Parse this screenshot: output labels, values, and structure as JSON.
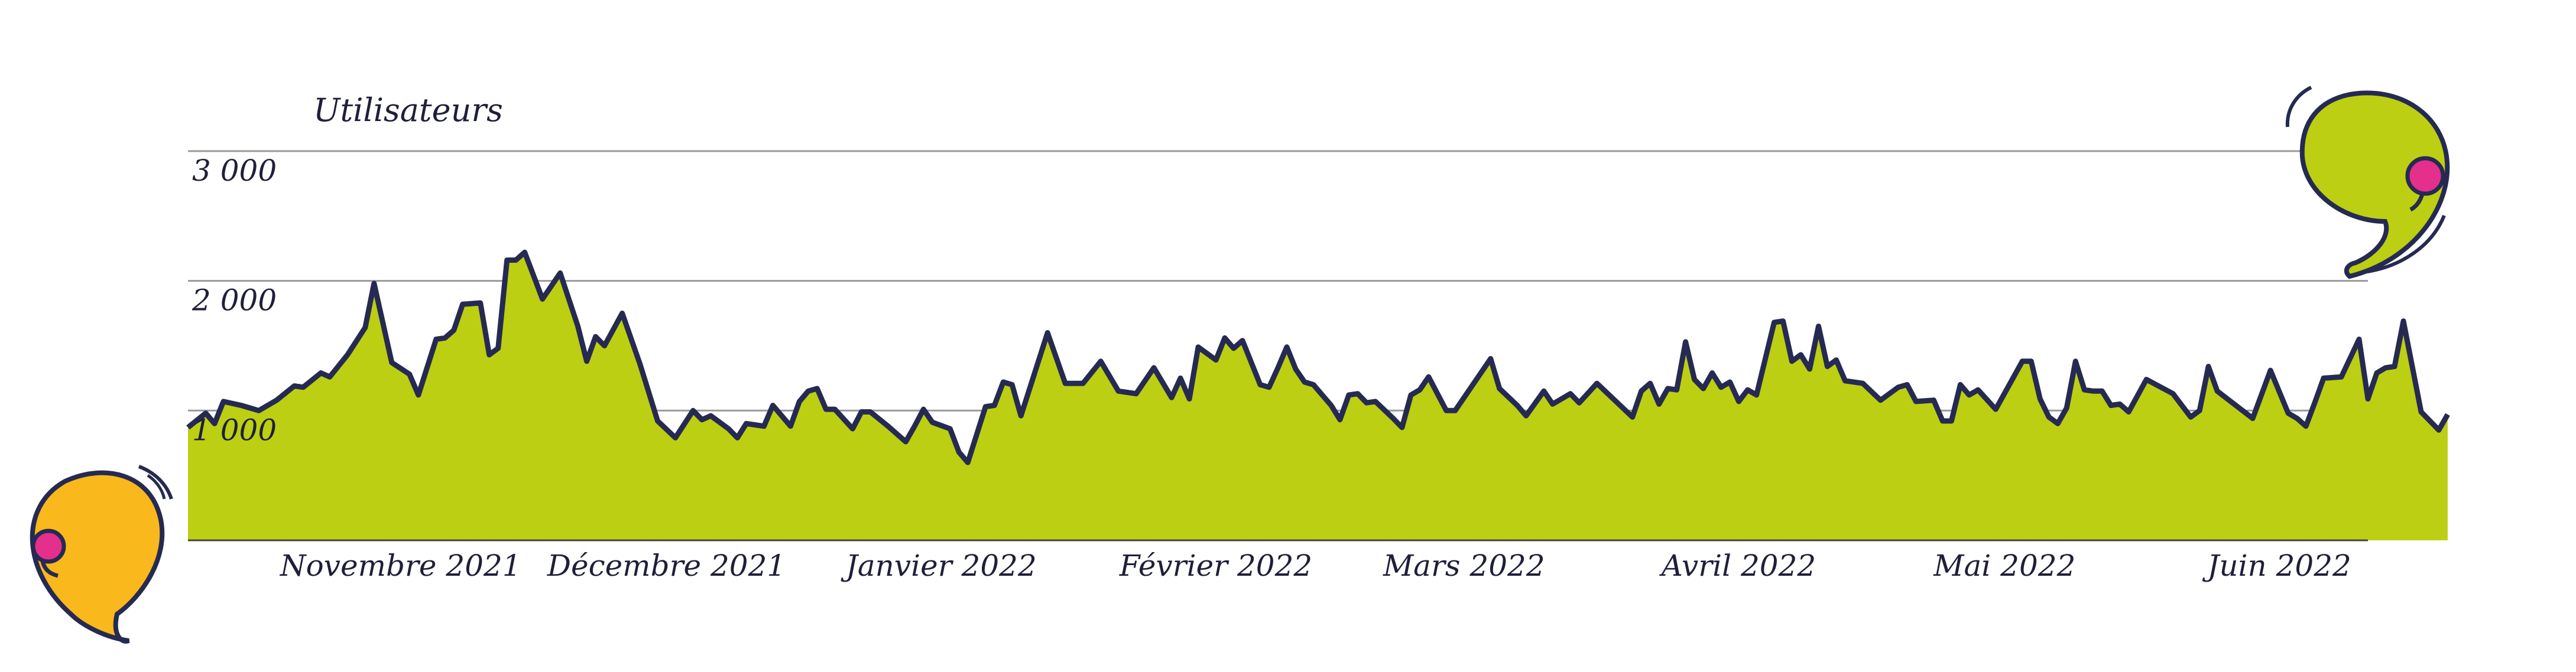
{
  "chart_data": {
    "type": "area",
    "ylabel": "Utilisateurs",
    "ylim": [
      0,
      3300
    ],
    "yticks": [
      1000,
      2000,
      3000
    ],
    "ytick_labels": [
      "1 000",
      "2 000",
      "3 000"
    ],
    "xlim": [
      "2021-10-08",
      "2022-06-11"
    ],
    "xticks": [
      "2021-11-01",
      "2021-12-01",
      "2022-01-01",
      "2022-02-01",
      "2022-03-01",
      "2022-04-01",
      "2022-05-01",
      "2022-06-01"
    ],
    "xtick_labels": [
      "Novembre 2021",
      "Décembre 2021",
      "Janvier 2022",
      "Février 2022",
      "Mars 2022",
      "Avril 2022",
      "Mai 2022",
      "Juin 2022"
    ],
    "grid": true,
    "colors": {
      "fill": "#bccf12",
      "line": "#262a52",
      "grid": "#9a9a9a",
      "comma_yellow": "#f9b81c",
      "comma_green": "#bccf12",
      "comma_pink": "#e42f8d"
    },
    "series": [
      {
        "points": [
          [
            "2021-10-08",
            870
          ],
          [
            "2021-10-10",
            980
          ],
          [
            "2021-10-11",
            900
          ],
          [
            "2021-10-12",
            1070
          ],
          [
            "2021-10-14",
            1040
          ],
          [
            "2021-10-16",
            1000
          ],
          [
            "2021-10-18",
            1080
          ],
          [
            "2021-10-20",
            1190
          ],
          [
            "2021-10-21",
            1180
          ],
          [
            "2021-10-23",
            1290
          ],
          [
            "2021-10-24",
            1260
          ],
          [
            "2021-10-26",
            1430
          ],
          [
            "2021-10-28",
            1640
          ],
          [
            "2021-10-29",
            1980
          ],
          [
            "2021-10-31",
            1370
          ],
          [
            "2021-11-02",
            1280
          ],
          [
            "2021-11-03",
            1120
          ],
          [
            "2021-11-05",
            1550
          ],
          [
            "2021-11-06",
            1560
          ],
          [
            "2021-11-07",
            1620
          ],
          [
            "2021-11-08",
            1820
          ],
          [
            "2021-11-10",
            1830
          ],
          [
            "2021-11-11",
            1430
          ],
          [
            "2021-11-12",
            1480
          ],
          [
            "2021-11-13",
            2160
          ],
          [
            "2021-11-14",
            2160
          ],
          [
            "2021-11-15",
            2220
          ],
          [
            "2021-11-17",
            1860
          ],
          [
            "2021-11-19",
            2060
          ],
          [
            "2021-11-21",
            1650
          ],
          [
            "2021-11-22",
            1380
          ],
          [
            "2021-11-23",
            1570
          ],
          [
            "2021-11-24",
            1500
          ],
          [
            "2021-11-26",
            1750
          ],
          [
            "2021-11-28",
            1360
          ],
          [
            "2021-11-30",
            920
          ],
          [
            "2021-12-02",
            790
          ],
          [
            "2021-12-04",
            1000
          ],
          [
            "2021-12-05",
            930
          ],
          [
            "2021-12-06",
            960
          ],
          [
            "2021-12-08",
            860
          ],
          [
            "2021-12-09",
            790
          ],
          [
            "2021-12-10",
            900
          ],
          [
            "2021-12-12",
            880
          ],
          [
            "2021-12-13",
            1040
          ],
          [
            "2021-12-15",
            880
          ],
          [
            "2021-12-16",
            1070
          ],
          [
            "2021-12-17",
            1150
          ],
          [
            "2021-12-18",
            1170
          ],
          [
            "2021-12-19",
            1010
          ],
          [
            "2021-12-20",
            1010
          ],
          [
            "2021-12-22",
            860
          ],
          [
            "2021-12-23",
            990
          ],
          [
            "2021-12-24",
            990
          ],
          [
            "2021-12-26",
            880
          ],
          [
            "2021-12-28",
            760
          ],
          [
            "2021-12-29",
            880
          ],
          [
            "2021-12-30",
            1010
          ],
          [
            "2021-12-31",
            910
          ],
          [
            "2022-01-02",
            860
          ],
          [
            "2022-01-03",
            680
          ],
          [
            "2022-01-04",
            600
          ],
          [
            "2022-01-06",
            1030
          ],
          [
            "2022-01-07",
            1040
          ],
          [
            "2022-01-08",
            1220
          ],
          [
            "2022-01-09",
            1200
          ],
          [
            "2022-01-10",
            960
          ],
          [
            "2022-01-13",
            1600
          ],
          [
            "2022-01-15",
            1210
          ],
          [
            "2022-01-17",
            1210
          ],
          [
            "2022-01-19",
            1380
          ],
          [
            "2022-01-21",
            1150
          ],
          [
            "2022-01-23",
            1130
          ],
          [
            "2022-01-25",
            1330
          ],
          [
            "2022-01-27",
            1100
          ],
          [
            "2022-01-28",
            1250
          ],
          [
            "2022-01-29",
            1090
          ],
          [
            "2022-01-30",
            1490
          ],
          [
            "2022-02-01",
            1390
          ],
          [
            "2022-02-02",
            1560
          ],
          [
            "2022-02-03",
            1480
          ],
          [
            "2022-02-04",
            1540
          ],
          [
            "2022-02-06",
            1200
          ],
          [
            "2022-02-07",
            1180
          ],
          [
            "2022-02-08",
            1330
          ],
          [
            "2022-02-09",
            1490
          ],
          [
            "2022-02-10",
            1320
          ],
          [
            "2022-02-11",
            1220
          ],
          [
            "2022-02-12",
            1200
          ],
          [
            "2022-02-14",
            1040
          ],
          [
            "2022-02-15",
            930
          ],
          [
            "2022-02-16",
            1120
          ],
          [
            "2022-02-17",
            1130
          ],
          [
            "2022-02-18",
            1060
          ],
          [
            "2022-02-19",
            1070
          ],
          [
            "2022-02-21",
            940
          ],
          [
            "2022-02-22",
            870
          ],
          [
            "2022-02-23",
            1120
          ],
          [
            "2022-02-24",
            1160
          ],
          [
            "2022-02-25",
            1260
          ],
          [
            "2022-02-27",
            1000
          ],
          [
            "2022-02-28",
            1000
          ],
          [
            "2022-03-03",
            1300
          ],
          [
            "2022-03-04",
            1400
          ],
          [
            "2022-03-05",
            1170
          ],
          [
            "2022-03-07",
            1040
          ],
          [
            "2022-03-08",
            960
          ],
          [
            "2022-03-10",
            1150
          ],
          [
            "2022-03-11",
            1050
          ],
          [
            "2022-03-13",
            1130
          ],
          [
            "2022-03-14",
            1060
          ],
          [
            "2022-03-16",
            1210
          ],
          [
            "2022-03-20",
            950
          ],
          [
            "2022-03-21",
            1150
          ],
          [
            "2022-03-22",
            1210
          ],
          [
            "2022-03-23",
            1050
          ],
          [
            "2022-03-24",
            1170
          ],
          [
            "2022-03-25",
            1160
          ],
          [
            "2022-03-26",
            1530
          ],
          [
            "2022-03-27",
            1240
          ],
          [
            "2022-03-28",
            1170
          ],
          [
            "2022-03-29",
            1290
          ],
          [
            "2022-03-30",
            1180
          ],
          [
            "2022-03-31",
            1220
          ],
          [
            "2022-04-01",
            1070
          ],
          [
            "2022-04-02",
            1160
          ],
          [
            "2022-04-03",
            1120
          ],
          [
            "2022-04-05",
            1680
          ],
          [
            "2022-04-06",
            1690
          ],
          [
            "2022-04-07",
            1380
          ],
          [
            "2022-04-08",
            1430
          ],
          [
            "2022-04-09",
            1320
          ],
          [
            "2022-04-10",
            1650
          ],
          [
            "2022-04-11",
            1340
          ],
          [
            "2022-04-12",
            1390
          ],
          [
            "2022-04-13",
            1230
          ],
          [
            "2022-04-15",
            1210
          ],
          [
            "2022-04-17",
            1080
          ],
          [
            "2022-04-19",
            1180
          ],
          [
            "2022-04-20",
            1200
          ],
          [
            "2022-04-21",
            1070
          ],
          [
            "2022-04-23",
            1080
          ],
          [
            "2022-04-24",
            920
          ],
          [
            "2022-04-25",
            920
          ],
          [
            "2022-04-26",
            1200
          ],
          [
            "2022-04-27",
            1120
          ],
          [
            "2022-04-28",
            1160
          ],
          [
            "2022-04-30",
            1010
          ],
          [
            "2022-05-03",
            1380
          ],
          [
            "2022-05-04",
            1380
          ],
          [
            "2022-05-05",
            1090
          ],
          [
            "2022-05-06",
            950
          ],
          [
            "2022-05-07",
            900
          ],
          [
            "2022-05-08",
            1020
          ],
          [
            "2022-05-09",
            1380
          ],
          [
            "2022-05-10",
            1160
          ],
          [
            "2022-05-11",
            1150
          ],
          [
            "2022-05-12",
            1150
          ],
          [
            "2022-05-13",
            1040
          ],
          [
            "2022-05-14",
            1050
          ],
          [
            "2022-05-15",
            990
          ],
          [
            "2022-05-17",
            1240
          ],
          [
            "2022-05-20",
            1130
          ],
          [
            "2022-05-22",
            950
          ],
          [
            "2022-05-23",
            1000
          ],
          [
            "2022-05-24",
            1340
          ],
          [
            "2022-05-25",
            1150
          ],
          [
            "2022-05-29",
            940
          ],
          [
            "2022-05-31",
            1310
          ],
          [
            "2022-06-02",
            980
          ],
          [
            "2022-06-03",
            940
          ],
          [
            "2022-06-04",
            880
          ],
          [
            "2022-06-05",
            1060
          ],
          [
            "2022-06-06",
            1250
          ],
          [
            "2022-06-08",
            1260
          ],
          [
            "2022-06-10",
            1550
          ],
          [
            "2022-06-11",
            1090
          ],
          [
            "2022-06-12",
            1290
          ],
          [
            "2022-06-13",
            1330
          ],
          [
            "2022-06-14",
            1340
          ],
          [
            "2022-06-15",
            1690
          ],
          [
            "2022-06-17",
            990
          ],
          [
            "2022-06-19",
            850
          ],
          [
            "2022-06-20",
            970
          ]
        ]
      }
    ]
  }
}
